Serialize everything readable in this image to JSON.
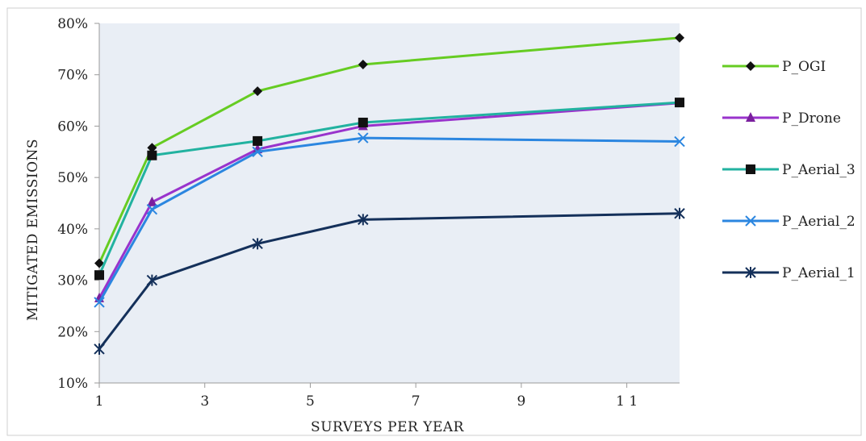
{
  "chart_data": {
    "type": "line",
    "title": "",
    "xlabel": "SURVEYS PER YEAR",
    "ylabel": "MITIGATED EMISSIONS",
    "xlim": [
      1,
      12
    ],
    "ylim": [
      10,
      80
    ],
    "x_ticks": [
      1,
      3,
      5,
      7,
      9,
      11
    ],
    "x_tick_labels": [
      "1",
      "3",
      "5",
      "7",
      "9",
      "1 1"
    ],
    "y_ticks": [
      10,
      20,
      30,
      40,
      50,
      60,
      70,
      80
    ],
    "y_tick_labels": [
      "10%",
      "20%",
      "30%",
      "40%",
      "50%",
      "60%",
      "70%",
      "80%"
    ],
    "grid": false,
    "legend_position": "right",
    "plot_background": "#e9eef5",
    "x": [
      1,
      2,
      4,
      6,
      12
    ],
    "series": [
      {
        "name": "P_OGI",
        "color": "#66cc22",
        "marker": "diamond",
        "marker_color": "#111111",
        "values": [
          33.3,
          55.8,
          66.8,
          72.0,
          77.2
        ]
      },
      {
        "name": "P_Drone",
        "color": "#9933cc",
        "marker": "triangle",
        "marker_color": "#7a1f9e",
        "values": [
          26.5,
          45.2,
          55.5,
          60.0,
          64.5
        ]
      },
      {
        "name": "P_Aerial_3",
        "color": "#22b2a0",
        "marker": "square",
        "marker_color": "#111111",
        "values": [
          31.0,
          54.3,
          57.1,
          60.7,
          64.6
        ]
      },
      {
        "name": "P_Aerial_2",
        "color": "#2b86e0",
        "marker": "x",
        "marker_color": "#2b86e0",
        "values": [
          25.7,
          43.8,
          55.0,
          57.7,
          57.0
        ]
      },
      {
        "name": "P_Aerial_1",
        "color": "#14305a",
        "marker": "asterisk",
        "marker_color": "#14305a",
        "values": [
          16.6,
          30.0,
          37.1,
          41.8,
          43.0
        ]
      }
    ]
  }
}
